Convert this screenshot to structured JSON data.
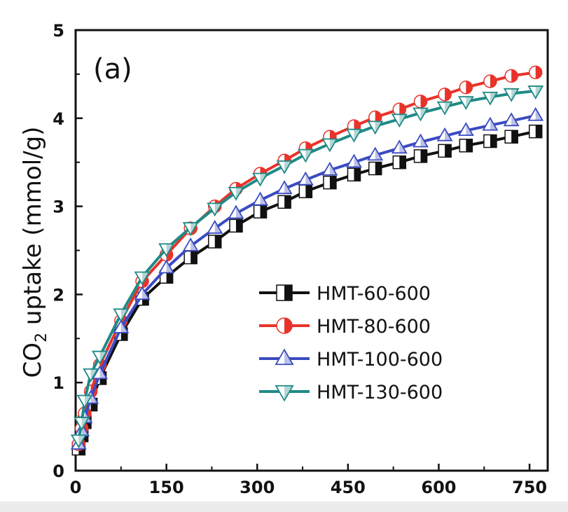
{
  "chart_data": {
    "type": "line",
    "panel_label": "(a)",
    "xlabel": "",
    "ylabel_prefix": "CO",
    "ylabel_subscript": "2",
    "ylabel_suffix": " uptake (mmol/g)",
    "xlim": [
      0,
      780
    ],
    "ylim": [
      0,
      5
    ],
    "xticks": [
      0,
      150,
      300,
      450,
      600,
      750
    ],
    "yticks": [
      0,
      1,
      2,
      3,
      4,
      5
    ],
    "grid": false,
    "legend_position": "center-right",
    "x": [
      5,
      10,
      15,
      25,
      40,
      75,
      110,
      150,
      190,
      230,
      265,
      305,
      345,
      380,
      420,
      460,
      495,
      535,
      570,
      610,
      645,
      685,
      720,
      760
    ],
    "series": [
      {
        "name": "HMT-60-600",
        "color": "#111111",
        "marker": "square-half",
        "values": [
          0.25,
          0.4,
          0.55,
          0.75,
          1.05,
          1.55,
          1.95,
          2.2,
          2.42,
          2.6,
          2.78,
          2.94,
          3.05,
          3.17,
          3.27,
          3.36,
          3.43,
          3.5,
          3.57,
          3.63,
          3.69,
          3.74,
          3.79,
          3.85
        ]
      },
      {
        "name": "HMT-80-600",
        "color": "#e8332b",
        "marker": "circle-half",
        "values": [
          0.3,
          0.48,
          0.65,
          0.9,
          1.2,
          1.7,
          2.15,
          2.45,
          2.75,
          3.0,
          3.2,
          3.37,
          3.52,
          3.66,
          3.79,
          3.91,
          4.01,
          4.1,
          4.19,
          4.27,
          4.35,
          4.42,
          4.48,
          4.52
        ]
      },
      {
        "name": "HMT-100-600",
        "color": "#3b4bc0",
        "marker": "triangle-up",
        "values": [
          0.3,
          0.45,
          0.6,
          0.82,
          1.1,
          1.62,
          2.0,
          2.3,
          2.55,
          2.75,
          2.92,
          3.07,
          3.2,
          3.3,
          3.41,
          3.5,
          3.58,
          3.66,
          3.73,
          3.8,
          3.86,
          3.92,
          3.97,
          4.03
        ]
      },
      {
        "name": "HMT-130-600",
        "color": "#1f8a86",
        "marker": "triangle-down",
        "values": [
          0.35,
          0.55,
          0.8,
          1.1,
          1.3,
          1.78,
          2.2,
          2.52,
          2.76,
          2.98,
          3.16,
          3.32,
          3.46,
          3.59,
          3.71,
          3.82,
          3.91,
          3.99,
          4.06,
          4.13,
          4.19,
          4.24,
          4.28,
          4.31
        ]
      }
    ]
  }
}
